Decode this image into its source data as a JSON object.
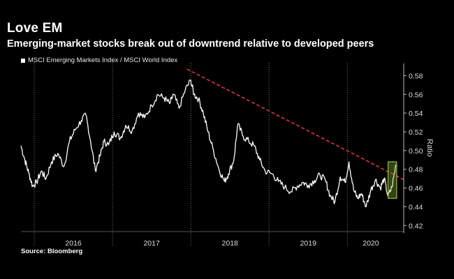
{
  "header": {
    "title": "Love EM",
    "subtitle": "Emerging-market stocks break out of downtrend relative to developed peers"
  },
  "legend": {
    "label": "MSCI Emerging Markets Index / MSCI World Index"
  },
  "source": "Source: Bloomberg",
  "colors": {
    "background": "#000000",
    "line": "#ffffff",
    "trendline": "#e0353f",
    "highlight": "#8fbf3a"
  },
  "chart_data": {
    "type": "line",
    "title": "Love EM",
    "ylabel": "Ratio",
    "xlabel": "",
    "ylim": [
      0.415,
      0.59
    ],
    "xlim": [
      2015.83,
      2020.72
    ],
    "yticks": [
      0.42,
      0.44,
      0.46,
      0.48,
      0.5,
      0.52,
      0.54,
      0.56,
      0.58
    ],
    "ytick_labels": [
      "0.42",
      "0.44",
      "0.46",
      "0.48",
      "0.50",
      "0.52",
      "0.54",
      "0.56",
      "0.58"
    ],
    "x_dividers": [
      2016.0,
      2017.0,
      2018.0,
      2019.0,
      2020.0
    ],
    "x_labels": [
      {
        "label": "2016",
        "center": 2016.5
      },
      {
        "label": "2017",
        "center": 2017.5
      },
      {
        "label": "2018",
        "center": 2018.5
      },
      {
        "label": "2019",
        "center": 2019.5
      },
      {
        "label": "2020",
        "center": 2020.3
      }
    ],
    "series": [
      {
        "name": "MSCI Emerging Markets Index / MSCI World Index",
        "x": [
          2015.83,
          2015.88,
          2015.93,
          2015.98,
          2016.03,
          2016.09,
          2016.15,
          2016.22,
          2016.3,
          2016.38,
          2016.45,
          2016.52,
          2016.6,
          2016.66,
          2016.72,
          2016.78,
          2016.84,
          2016.89,
          2016.95,
          2017.02,
          2017.1,
          2017.17,
          2017.25,
          2017.33,
          2017.41,
          2017.5,
          2017.58,
          2017.66,
          2017.73,
          2017.78,
          2017.85,
          2017.93,
          2018.0,
          2018.04,
          2018.1,
          2018.16,
          2018.22,
          2018.29,
          2018.36,
          2018.43,
          2018.48,
          2018.55,
          2018.6,
          2018.67,
          2018.74,
          2018.81,
          2018.88,
          2018.95,
          2019.04,
          2019.12,
          2019.2,
          2019.28,
          2019.36,
          2019.43,
          2019.5,
          2019.58,
          2019.65,
          2019.72,
          2019.78,
          2019.84,
          2019.91,
          2019.97,
          2020.02,
          2020.08,
          2020.13,
          2020.18,
          2020.24,
          2020.3,
          2020.36,
          2020.42,
          2020.47,
          2020.52,
          2020.57,
          2020.62
        ],
        "values": [
          0.505,
          0.49,
          0.476,
          0.462,
          0.466,
          0.478,
          0.47,
          0.488,
          0.497,
          0.483,
          0.51,
          0.522,
          0.532,
          0.538,
          0.51,
          0.479,
          0.494,
          0.51,
          0.506,
          0.52,
          0.513,
          0.527,
          0.521,
          0.54,
          0.535,
          0.548,
          0.56,
          0.556,
          0.55,
          0.56,
          0.545,
          0.565,
          0.575,
          0.56,
          0.555,
          0.54,
          0.52,
          0.5,
          0.48,
          0.467,
          0.475,
          0.49,
          0.528,
          0.515,
          0.51,
          0.505,
          0.49,
          0.478,
          0.475,
          0.467,
          0.461,
          0.456,
          0.462,
          0.466,
          0.463,
          0.468,
          0.474,
          0.468,
          0.452,
          0.445,
          0.472,
          0.466,
          0.488,
          0.458,
          0.449,
          0.454,
          0.44,
          0.458,
          0.469,
          0.46,
          0.47,
          0.451,
          0.461,
          0.485
        ]
      }
    ],
    "trendline": {
      "name": "Downtrend",
      "x": [
        2017.95,
        2020.72
      ],
      "values": [
        0.587,
        0.469
      ]
    },
    "highlight": {
      "x": [
        2020.52,
        2020.63
      ],
      "values": [
        0.449,
        0.488
      ]
    }
  }
}
